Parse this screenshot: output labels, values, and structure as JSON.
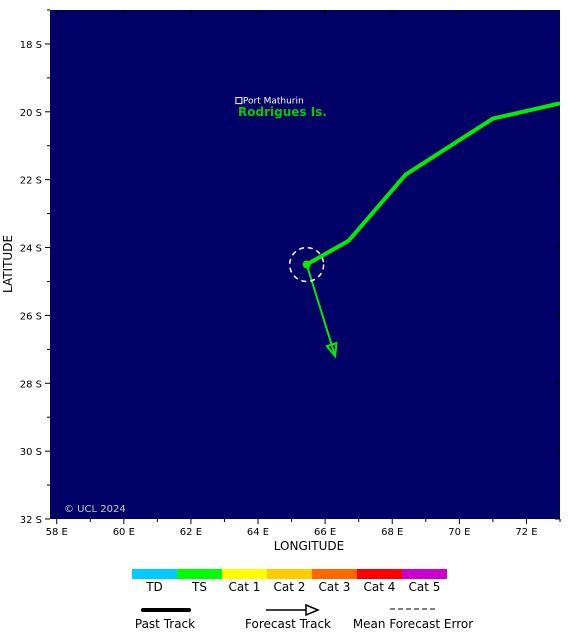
{
  "axes": {
    "x_title": "LONGITUDE",
    "y_title": "LATITUDE",
    "lon_range": [
      57.8,
      73.0
    ],
    "lat_range": [
      32.0,
      17.0
    ],
    "lon_ticks": [
      {
        "value": 58,
        "label": "58 E"
      },
      {
        "value": 60,
        "label": "60 E"
      },
      {
        "value": 62,
        "label": "62 E"
      },
      {
        "value": 64,
        "label": "64 E"
      },
      {
        "value": 66,
        "label": "66 E"
      },
      {
        "value": 68,
        "label": "68 E"
      },
      {
        "value": 70,
        "label": "70 E"
      },
      {
        "value": 72,
        "label": "72 E"
      }
    ],
    "lat_ticks": [
      {
        "value": 18,
        "label": "18 S"
      },
      {
        "value": 20,
        "label": "20 S"
      },
      {
        "value": 22,
        "label": "22 S"
      },
      {
        "value": 24,
        "label": "24 S"
      },
      {
        "value": 26,
        "label": "26 S"
      },
      {
        "value": 28,
        "label": "28 S"
      },
      {
        "value": 30,
        "label": "30 S"
      },
      {
        "value": 32,
        "label": "32 S"
      }
    ]
  },
  "map": {
    "ocean_color": "#000066",
    "place_marker": {
      "name": "Port Mathurin",
      "lon": 63.43,
      "lat": 19.67
    },
    "island_label": {
      "name": "Rodrigues Is.",
      "lon": 64.0,
      "lat": 20.0,
      "color": "#00cc00"
    },
    "copyright": "© UCL 2024"
  },
  "chart_data": {
    "type": "map-track",
    "past_track": {
      "intensity": "TS",
      "color": "#00ee00",
      "points": [
        {
          "lon": 73.0,
          "lat": 19.75
        },
        {
          "lon": 71.0,
          "lat": 20.2
        },
        {
          "lon": 68.4,
          "lat": 21.85
        },
        {
          "lon": 66.7,
          "lat": 23.8
        },
        {
          "lon": 65.45,
          "lat": 24.5
        }
      ]
    },
    "current_position": {
      "lon": 65.45,
      "lat": 24.5,
      "error_radius_deg": 0.5
    },
    "forecast_track": {
      "intensity": "TS",
      "color": "#00ee00",
      "points": [
        {
          "lon": 65.45,
          "lat": 24.5
        },
        {
          "lon": 66.3,
          "lat": 27.2
        }
      ]
    }
  },
  "legend": {
    "intensity": [
      {
        "label": "TD",
        "color": "#00ccff"
      },
      {
        "label": "TS",
        "color": "#00ff00"
      },
      {
        "label": "Cat 1",
        "color": "#ffff00"
      },
      {
        "label": "Cat 2",
        "color": "#ffcc00"
      },
      {
        "label": "Cat 3",
        "color": "#ff6600"
      },
      {
        "label": "Cat 4",
        "color": "#ff0000"
      },
      {
        "label": "Cat 5",
        "color": "#cc00cc"
      }
    ],
    "track_types": [
      {
        "key": "past",
        "label": "Past Track"
      },
      {
        "key": "forecast",
        "label": "Forecast Track"
      },
      {
        "key": "error",
        "label": "Mean Forecast Error"
      }
    ]
  }
}
